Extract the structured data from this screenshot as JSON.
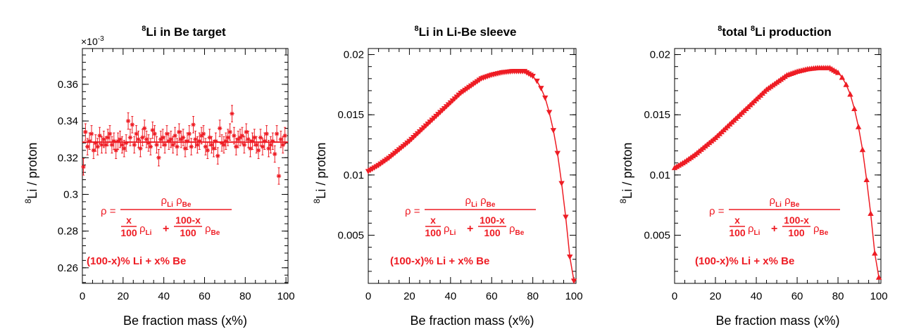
{
  "figure": {
    "accent_color": "#ee1c24",
    "text_color": "#000000"
  },
  "chart_data": [
    {
      "type": "scatter",
      "title_sup": "8",
      "title_rest": "Li in Be target",
      "xlabel": "Be fraction mass (x%)",
      "ylabel_sup": "8",
      "ylabel_rest": "Li / proton",
      "multiplier": "×10",
      "multiplier_exp": "-3",
      "xlim": [
        0,
        101
      ],
      "ylim": [
        0.2515,
        0.3795
      ],
      "x_ticks": [
        0,
        20,
        40,
        60,
        80,
        100
      ],
      "x_tick_labels": [
        "0",
        "20",
        "40",
        "60",
        "80",
        "100"
      ],
      "y_ticks": [
        0.26,
        0.28,
        0.3,
        0.32,
        0.34,
        0.36
      ],
      "y_tick_labels": [
        "0.26",
        "0.28",
        "0.3",
        "0.32",
        "0.34",
        "0.36"
      ],
      "fit_line": 0.3285,
      "series": [
        {
          "name": "8Li in Be target",
          "marker": "asterisk",
          "x": [
            0,
            1,
            2,
            3,
            4,
            5,
            6,
            7,
            8,
            9,
            10,
            11,
            12,
            13,
            14,
            15,
            16,
            17,
            18,
            19,
            20,
            21,
            22,
            23,
            24,
            25,
            26,
            27,
            28,
            29,
            30,
            31,
            32,
            33,
            34,
            35,
            36,
            37,
            38,
            39,
            40,
            41,
            42,
            43,
            44,
            45,
            46,
            47,
            48,
            49,
            50,
            51,
            52,
            53,
            54,
            55,
            56,
            57,
            58,
            59,
            60,
            61,
            62,
            63,
            64,
            65,
            66,
            67,
            68,
            69,
            70,
            71,
            72,
            73,
            74,
            75,
            76,
            77,
            78,
            79,
            80,
            81,
            82,
            83,
            84,
            85,
            86,
            87,
            88,
            89,
            90,
            91,
            92,
            93,
            94,
            95,
            96,
            97,
            98,
            99
          ],
          "y": [
            0.315,
            0.334,
            0.326,
            0.329,
            0.333,
            0.324,
            0.328,
            0.326,
            0.332,
            0.327,
            0.33,
            0.327,
            0.331,
            0.333,
            0.327,
            0.329,
            0.324,
            0.329,
            0.33,
            0.327,
            0.325,
            0.328,
            0.34,
            0.331,
            0.338,
            0.327,
            0.333,
            0.33,
            0.325,
            0.331,
            0.336,
            0.33,
            0.328,
            0.326,
            0.335,
            0.333,
            0.327,
            0.32,
            0.33,
            0.331,
            0.327,
            0.333,
            0.329,
            0.33,
            0.327,
            0.332,
            0.326,
            0.334,
            0.33,
            0.331,
            0.325,
            0.329,
            0.333,
            0.326,
            0.338,
            0.33,
            0.327,
            0.329,
            0.332,
            0.333,
            0.326,
            0.324,
            0.331,
            0.327,
            0.325,
            0.329,
            0.321,
            0.336,
            0.328,
            0.327,
            0.329,
            0.331,
            0.334,
            0.344,
            0.332,
            0.326,
            0.33,
            0.331,
            0.332,
            0.327,
            0.334,
            0.33,
            0.325,
            0.329,
            0.331,
            0.327,
            0.324,
            0.331,
            0.326,
            0.329,
            0.333,
            0.325,
            0.327,
            0.329,
            0.322,
            0.333,
            0.31,
            0.33,
            0.327,
            0.332
          ],
          "err": 0.0045
        }
      ],
      "annotations": {
        "formula_lhs": "ρ =",
        "numerator_rho1": "ρ",
        "numerator_sub1": "Li",
        "numerator_rho2": "ρ",
        "numerator_sub2": "Be",
        "frac1_num": "x",
        "frac1_den": "100",
        "rho_li": "ρ",
        "sub_li": "Li",
        "plus": "+",
        "frac2_num": "100-x",
        "frac2_den": "100",
        "rho_be": "ρ",
        "sub_be": "Be",
        "composition": "(100-x)% Li + x% Be"
      }
    },
    {
      "type": "line",
      "title_sup": "8",
      "title_rest": "Li in Li-Be sleeve",
      "xlabel": "Be fraction mass (x%)",
      "ylabel_sup": "8",
      "ylabel_rest": "Li / proton",
      "xlim": [
        0,
        101
      ],
      "ylim": [
        0.001,
        0.0205
      ],
      "x_ticks": [
        0,
        20,
        40,
        60,
        80,
        100
      ],
      "x_tick_labels": [
        "0",
        "20",
        "40",
        "60",
        "80",
        "100"
      ],
      "y_ticks": [
        0.005,
        0.01,
        0.015,
        0.02
      ],
      "y_tick_labels": [
        "0.005",
        "0.01",
        "0.015",
        "0.02"
      ],
      "series": [
        {
          "name": "8Li in Li-Be sleeve",
          "marker": "triangle-down",
          "x": [
            0,
            5,
            10,
            15,
            20,
            25,
            30,
            35,
            40,
            45,
            50,
            55,
            60,
            65,
            70,
            72,
            74,
            76,
            78,
            80,
            82,
            84,
            86,
            88,
            90,
            92,
            94,
            96,
            98,
            100
          ],
          "y": [
            0.0103,
            0.0108,
            0.0114,
            0.0121,
            0.0128,
            0.0136,
            0.0144,
            0.0152,
            0.016,
            0.0168,
            0.0174,
            0.018,
            0.0183,
            0.0185,
            0.0186,
            0.0186,
            0.0186,
            0.0186,
            0.0184,
            0.0182,
            0.0178,
            0.0172,
            0.0164,
            0.0152,
            0.0137,
            0.0118,
            0.0093,
            0.0065,
            0.0032,
            0.0012
          ]
        }
      ],
      "annotations": {
        "formula_lhs": "ρ =",
        "numerator_rho1": "ρ",
        "numerator_sub1": "Li",
        "numerator_rho2": "ρ",
        "numerator_sub2": "Be",
        "frac1_num": "x",
        "frac1_den": "100",
        "rho_li": "ρ",
        "sub_li": "Li",
        "plus": "+",
        "frac2_num": "100-x",
        "frac2_den": "100",
        "rho_be": "ρ",
        "sub_be": "Be",
        "composition": "(100-x)% Li + x% Be"
      }
    },
    {
      "type": "line",
      "title_sup": "8",
      "title_rest": "total ",
      "title_sup2": "8",
      "title_rest2": "Li production",
      "xlabel": "Be fraction mass (x%)",
      "ylabel_sup": "8",
      "ylabel_rest": "Li / proton",
      "xlim": [
        0,
        101
      ],
      "ylim": [
        0.001,
        0.0205
      ],
      "x_ticks": [
        0,
        20,
        40,
        60,
        80,
        100
      ],
      "x_tick_labels": [
        "0",
        "20",
        "40",
        "60",
        "80",
        "100"
      ],
      "y_ticks": [
        0.005,
        0.01,
        0.015,
        0.02
      ],
      "y_tick_labels": [
        "0.005",
        "0.01",
        "0.015",
        "0.02"
      ],
      "series": [
        {
          "name": "total 8Li production",
          "marker": "triangle-up",
          "x": [
            0,
            5,
            10,
            15,
            20,
            25,
            30,
            35,
            40,
            45,
            50,
            55,
            60,
            65,
            70,
            72,
            74,
            76,
            78,
            80,
            82,
            84,
            86,
            88,
            90,
            92,
            94,
            96,
            98,
            100
          ],
          "y": [
            0.0106,
            0.0111,
            0.0117,
            0.0124,
            0.0131,
            0.0139,
            0.0147,
            0.0155,
            0.0163,
            0.0171,
            0.0177,
            0.0183,
            0.0186,
            0.0188,
            0.0189,
            0.0189,
            0.0189,
            0.0189,
            0.0187,
            0.0185,
            0.0181,
            0.0175,
            0.0167,
            0.0155,
            0.014,
            0.0121,
            0.0096,
            0.0068,
            0.0035,
            0.0015
          ]
        }
      ],
      "annotations": {
        "formula_lhs": "ρ =",
        "numerator_rho1": "ρ",
        "numerator_sub1": "Li",
        "numerator_rho2": "ρ",
        "numerator_sub2": "Be",
        "frac1_num": "x",
        "frac1_den": "100",
        "rho_li": "ρ",
        "sub_li": "Li",
        "plus": "+",
        "frac2_num": "100-x",
        "frac2_den": "100",
        "rho_be": "ρ",
        "sub_be": "Be",
        "composition": "(100-x)% Li + x% Be"
      }
    }
  ]
}
